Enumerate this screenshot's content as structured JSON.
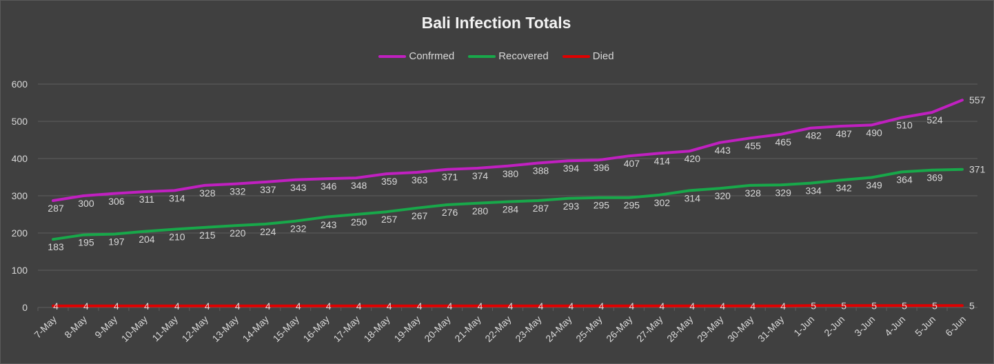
{
  "chart_data": {
    "type": "line",
    "title": "Bali Infection Totals",
    "xlabel": "",
    "ylabel": "",
    "ylim": [
      0,
      600
    ],
    "yticks": [
      "0",
      "100",
      "200",
      "300",
      "400",
      "500",
      "600"
    ],
    "grid": true,
    "legend_position": "top",
    "categories": [
      "7-May",
      "8-May",
      "9-May",
      "10-May",
      "11-May",
      "12-May",
      "13-May",
      "14-May",
      "15-May",
      "16-May",
      "17-May",
      "18-May",
      "19-May",
      "20-May",
      "21-May",
      "22-May",
      "23-May",
      "24-May",
      "25-May",
      "26-May",
      "27-May",
      "28-May",
      "29-May",
      "30-May",
      "31-May",
      "1-Jun",
      "2-Jun",
      "3-Jun",
      "4-Jun",
      "5-Jun",
      "6-Jun"
    ],
    "series": [
      {
        "name": "Confrmed",
        "color": "#c020c0",
        "values": [
          287,
          300,
          306,
          311,
          314,
          328,
          332,
          337,
          343,
          346,
          348,
          359,
          363,
          371,
          374,
          380,
          388,
          394,
          396,
          407,
          414,
          420,
          443,
          455,
          465,
          482,
          487,
          490,
          510,
          524,
          557
        ]
      },
      {
        "name": "Recovered",
        "color": "#18a84a",
        "values": [
          183,
          195,
          197,
          204,
          210,
          215,
          220,
          224,
          232,
          243,
          250,
          257,
          267,
          276,
          280,
          284,
          287,
          293,
          295,
          295,
          302,
          314,
          320,
          328,
          329,
          334,
          342,
          349,
          364,
          369,
          371
        ]
      },
      {
        "name": "Died",
        "color": "#e00000",
        "values": [
          4,
          4,
          4,
          4,
          4,
          4,
          4,
          4,
          4,
          4,
          4,
          4,
          4,
          4,
          4,
          4,
          4,
          4,
          4,
          4,
          4,
          4,
          4,
          4,
          4,
          5,
          5,
          5,
          5,
          5,
          5
        ]
      }
    ]
  },
  "colors": {
    "background": "#404040",
    "gridline": "#5e5e5e",
    "text": "#d9d9d9",
    "title": "#f2f2f2"
  }
}
